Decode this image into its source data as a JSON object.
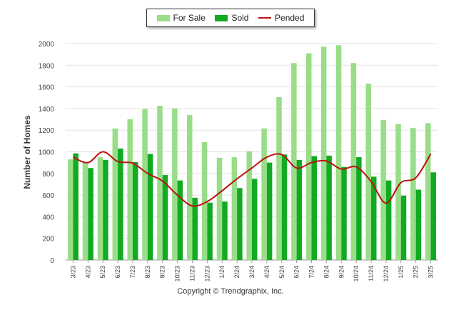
{
  "chart_data": {
    "type": "bar",
    "categories": [
      "3/23",
      "4/23",
      "5/23",
      "6/23",
      "7/23",
      "8/23",
      "9/23",
      "10/23",
      "11/23",
      "12/23",
      "1/24",
      "2/24",
      "3/24",
      "4/24",
      "5/24",
      "6/24",
      "7/24",
      "8/24",
      "9/24",
      "10/24",
      "11/24",
      "12/24",
      "1/25",
      "2/25",
      "3/25"
    ],
    "series": [
      {
        "name": "For Sale",
        "type": "bar",
        "color": "#99dd88",
        "values": [
          930,
          900,
          950,
          1215,
          1300,
          1395,
          1425,
          1400,
          1340,
          1090,
          945,
          950,
          1005,
          1215,
          1505,
          1820,
          1910,
          1970,
          1985,
          1820,
          1630,
          1295,
          1255,
          1220,
          1265
        ]
      },
      {
        "name": "Sold",
        "type": "bar",
        "color": "#11aa22",
        "values": [
          985,
          850,
          925,
          1030,
          905,
          980,
          785,
          735,
          575,
          530,
          540,
          665,
          750,
          900,
          975,
          925,
          960,
          965,
          860,
          950,
          770,
          735,
          595,
          650,
          810
        ]
      },
      {
        "name": "Pended",
        "type": "line",
        "color": "#bb1111",
        "values": [
          950,
          900,
          1000,
          910,
          895,
          800,
          730,
          600,
          500,
          540,
          640,
          750,
          850,
          950,
          975,
          850,
          900,
          915,
          840,
          860,
          725,
          525,
          715,
          760,
          980
        ]
      }
    ],
    "ylabel": "Number of Homes",
    "ylim": [
      0,
      2000
    ],
    "yticks": [
      0,
      200,
      400,
      600,
      800,
      1000,
      1200,
      1400,
      1600,
      1800,
      2000
    ],
    "grid": true,
    "legend_placement": "top-center"
  },
  "copyright": "Copyright © Trendgraphix, Inc."
}
